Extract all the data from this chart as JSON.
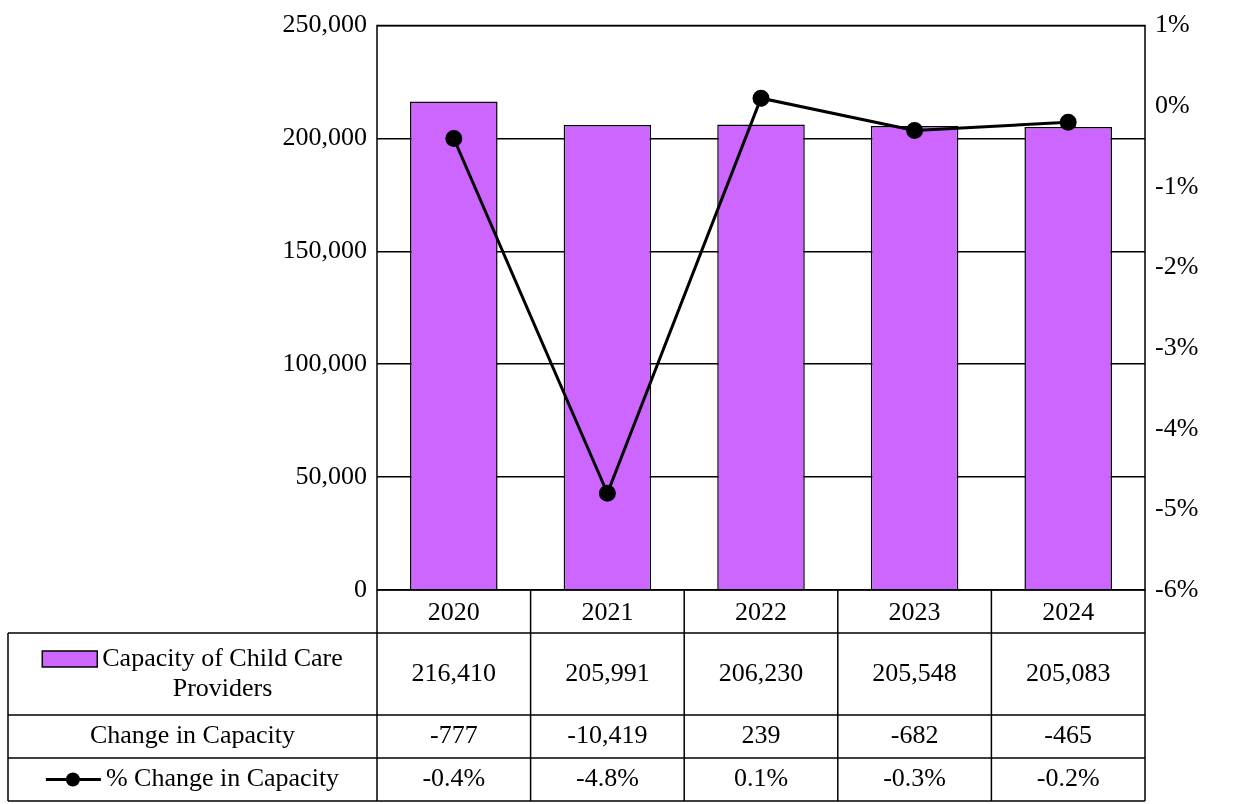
{
  "chart_data": {
    "type": "bar",
    "categories": [
      "2020",
      "2021",
      "2022",
      "2023",
      "2024"
    ],
    "series": [
      {
        "name": "Capacity of Child Care Providers",
        "color": "#cc66ff",
        "values": [
          216410,
          205991,
          206230,
          205548,
          205083
        ],
        "value_labels": [
          "216,410",
          "205,991",
          "206,230",
          "205,548",
          "205,083"
        ]
      },
      {
        "name": "% Change in Capacity",
        "type": "line",
        "axis": "y2",
        "color": "#000000",
        "values": [
          -0.4,
          -4.8,
          0.1,
          -0.3,
          -0.2
        ],
        "value_labels": [
          "-0.4%",
          "-4.8%",
          "0.1%",
          "-0.3%",
          "-0.2%"
        ]
      }
    ],
    "ylim": [
      0,
      250000
    ],
    "yticks": [
      0,
      {
        "value": 50000,
        "label": "50,000"
      },
      {
        "value": 100000,
        "label": "100,000"
      },
      {
        "value": 150000,
        "label": "150,000"
      },
      {
        "value": 200000,
        "label": "200,000"
      },
      {
        "value": 250000,
        "label": "250,000"
      }
    ],
    "y2lim": [
      -6,
      1
    ],
    "y2ticks": [
      {
        "value": -6,
        "label": "-6%"
      },
      {
        "value": -5,
        "label": "-5%"
      },
      {
        "value": -4,
        "label": "-4%"
      },
      {
        "value": -3,
        "label": "-3%"
      },
      {
        "value": -2,
        "label": "-2%"
      },
      {
        "value": -1,
        "label": "-1%"
      },
      {
        "value": 0,
        "label": "0%"
      },
      {
        "value": 1,
        "label": "1%"
      }
    ],
    "annotations": [
      "Change in Capacity",
      "-777",
      "-10,419",
      "239",
      "-682",
      "-465"
    ],
    "grid": "y",
    "legend": "bottom",
    "marker": "circle",
    "line_style": "solid",
    "data_labels": true
  }
}
